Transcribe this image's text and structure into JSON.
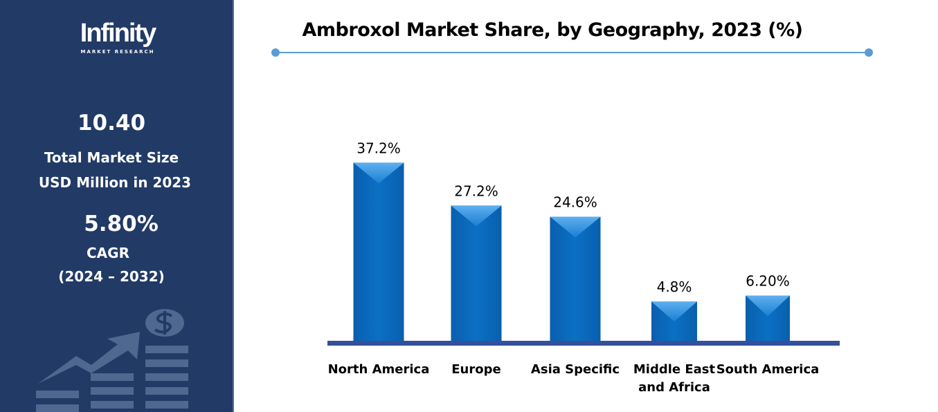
{
  "sidebar": {
    "logo_main": "Infinity",
    "logo_sub": "MARKET RESEARCH",
    "market_size": "10.40",
    "market_size_label_1": "Total Market Size",
    "market_size_label_2": "USD Million in 2023",
    "cagr": "5.80%",
    "cagr_label": "CAGR",
    "cagr_period": "(2024 – 2032)",
    "icon": "growth-chart-dollar-icon"
  },
  "colors": {
    "sidebar": "#223a66",
    "bar": "#0b6cc0",
    "baseline": "#34509a",
    "accent_line": "#5b9bd5"
  },
  "chart_data": {
    "type": "bar",
    "title": "Ambroxol Market Share, by Geography, 2023 (%)",
    "categories": [
      [
        "North America"
      ],
      [
        "Europe"
      ],
      [
        "Asia Specific"
      ],
      [
        "Middle East",
        "and Africa"
      ],
      [
        "South America"
      ]
    ],
    "values": [
      37.2,
      27.2,
      24.6,
      4.8,
      6.2
    ],
    "labels": [
      "37.2%",
      "27.2%",
      "24.6%",
      "4.8%",
      "6.20%"
    ],
    "grid": false,
    "legend": "none"
  }
}
